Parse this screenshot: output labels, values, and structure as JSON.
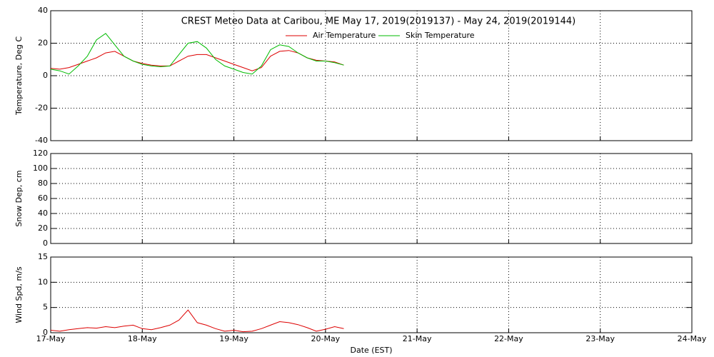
{
  "chart_data": [
    {
      "type": "line",
      "title": "CREST Meteo Data at Caribou, ME   May 17, 2019(2019137) - May 24, 2019(2019144)",
      "ylabel": "Temperature, Deg C",
      "xlim": [
        17,
        24
      ],
      "xticks": [
        17,
        18,
        19,
        20,
        21,
        22,
        23,
        24
      ],
      "ylim": [
        -40,
        40
      ],
      "yticks": [
        -40,
        -20,
        0,
        20,
        40
      ],
      "grid": true,
      "x": [
        17.0,
        17.1,
        17.2,
        17.3,
        17.4,
        17.5,
        17.6,
        17.7,
        17.8,
        17.9,
        18.0,
        18.1,
        18.2,
        18.3,
        18.4,
        18.5,
        18.6,
        18.7,
        18.8,
        18.9,
        19.0,
        19.1,
        19.2,
        19.3,
        19.4,
        19.5,
        19.6,
        19.7,
        19.8,
        19.9,
        20.0,
        20.1,
        20.2
      ],
      "series": [
        {
          "name": "Air Temperature",
          "color": "#dd0000",
          "values": [
            4.5,
            4,
            5,
            7,
            9,
            11,
            14,
            15,
            12,
            9,
            7.5,
            6.5,
            6,
            6,
            9,
            12,
            13,
            13,
            11,
            9,
            7,
            5,
            3,
            5,
            12,
            15,
            15.5,
            14,
            11,
            9.5,
            9,
            8.5,
            6.5
          ]
        },
        {
          "name": "Skin Temperature",
          "color": "#00bb00",
          "values": [
            4,
            3,
            1,
            6,
            12,
            22,
            26,
            19,
            12,
            9,
            7,
            6,
            5.5,
            6,
            13,
            20,
            21,
            17,
            10,
            6,
            4,
            2,
            1,
            6,
            16,
            19,
            18,
            14,
            11,
            9,
            9,
            8,
            6.5
          ]
        }
      ]
    },
    {
      "type": "line",
      "ylabel": "Snow Dep, cm",
      "xlim": [
        17,
        24
      ],
      "xticks": [
        17,
        18,
        19,
        20,
        21,
        22,
        23,
        24
      ],
      "ylim": [
        0,
        120
      ],
      "yticks": [
        0,
        20,
        40,
        60,
        80,
        100,
        120
      ],
      "grid": true,
      "series": []
    },
    {
      "type": "line",
      "ylabel": "Wind Spd, m/s",
      "xlabel": "Date (EST)",
      "xlim": [
        17,
        24
      ],
      "xticks": [
        {
          "value": 17,
          "label": "17-May"
        },
        {
          "value": 18,
          "label": "18-May"
        },
        {
          "value": 19,
          "label": "19-May"
        },
        {
          "value": 20,
          "label": "20-May"
        },
        {
          "value": 21,
          "label": "21-May"
        },
        {
          "value": 22,
          "label": "22-May"
        },
        {
          "value": 23,
          "label": "23-May"
        },
        {
          "value": 24,
          "label": "24-May"
        }
      ],
      "ylim": [
        0,
        15
      ],
      "yticks": [
        0,
        5,
        10,
        15
      ],
      "grid": true,
      "x": [
        17.0,
        17.1,
        17.2,
        17.3,
        17.4,
        17.5,
        17.6,
        17.7,
        17.8,
        17.9,
        18.0,
        18.1,
        18.2,
        18.3,
        18.4,
        18.5,
        18.6,
        18.7,
        18.8,
        18.9,
        19.0,
        19.1,
        19.2,
        19.3,
        19.4,
        19.5,
        19.6,
        19.7,
        19.8,
        19.9,
        20.0,
        20.1,
        20.2
      ],
      "series": [
        {
          "color": "#dd0000",
          "values": [
            0.5,
            0.3,
            0.6,
            0.8,
            1.0,
            0.9,
            1.2,
            1.0,
            1.3,
            1.5,
            0.8,
            0.6,
            1.0,
            1.5,
            2.5,
            4.5,
            2.0,
            1.5,
            0.8,
            0.3,
            0.5,
            0.2,
            0.3,
            0.8,
            1.5,
            2.2,
            2.0,
            1.6,
            1.0,
            0.3,
            0.7,
            1.2,
            0.8
          ]
        }
      ]
    }
  ]
}
